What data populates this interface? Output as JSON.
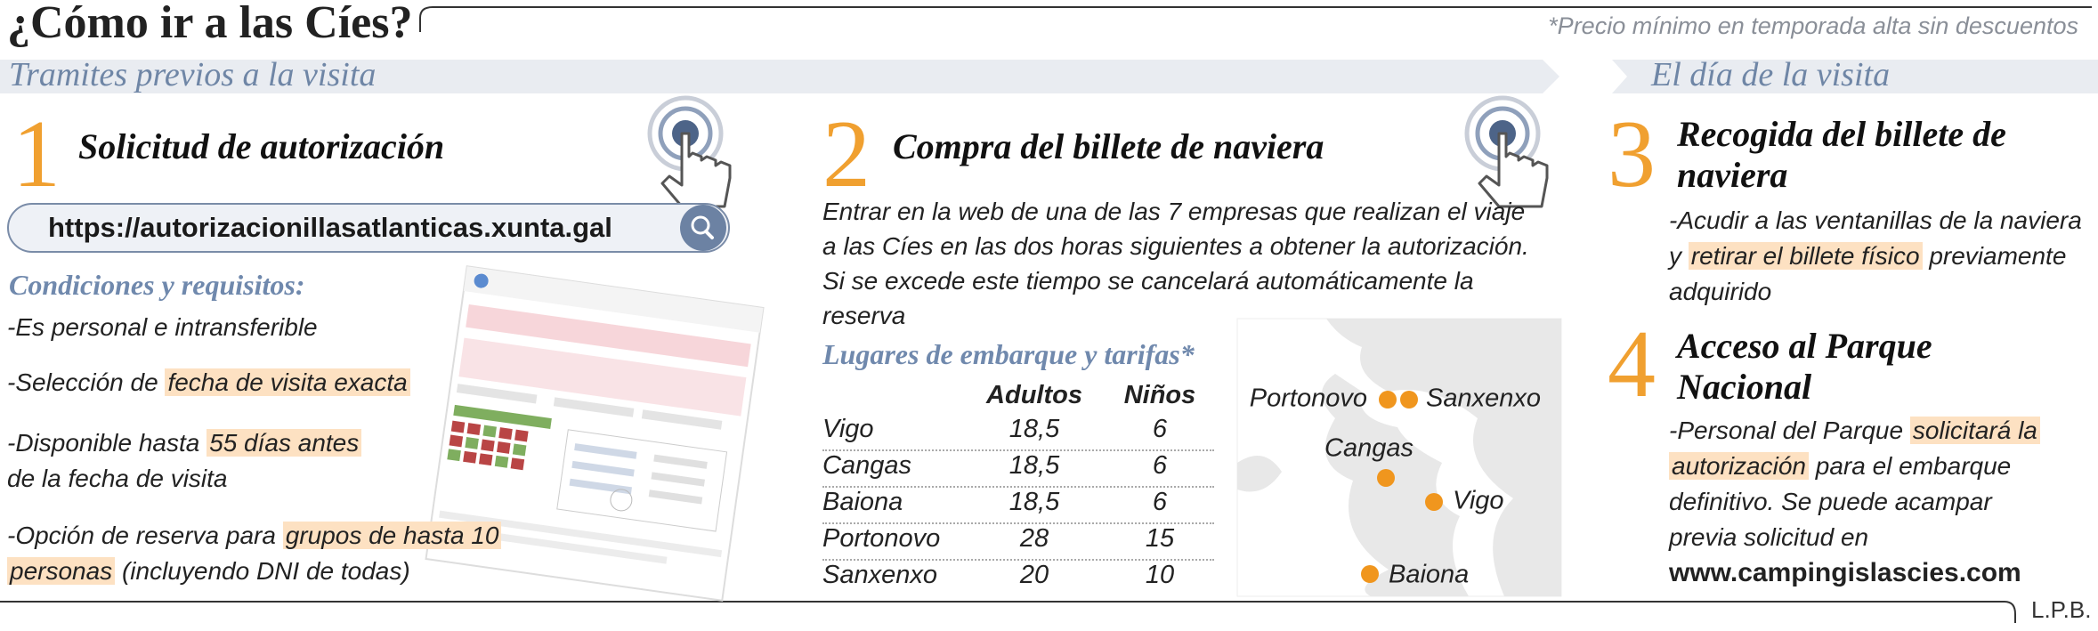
{
  "header": {
    "title": "¿Cómo ir a las Cíes?",
    "note": "*Precio mínimo en temporada alta sin descuentos"
  },
  "sections": [
    "Tramites previos a la visita",
    "El día de la visita"
  ],
  "steps": [
    {
      "number": 1,
      "title": "Solicitud de autorización",
      "url": "https://autorizacionillasatlanticas.xunta.gal",
      "subtitle": "Condiciones y requisitos:",
      "items": [
        {
          "pre": "-Es personal e intransferible"
        },
        {
          "pre": "-Selección de ",
          "mark": "fecha de visita exacta"
        },
        {
          "pre": "-Disponible hasta ",
          "mark": "55 días antes",
          "post": "de la fecha de visita"
        },
        {
          "pre": "-Opción de reserva para ",
          "mark": "grupos de hasta 10 personas",
          "post": " (incluyendo DNI de todas)"
        }
      ]
    },
    {
      "number": 2,
      "title": "Compra del billete de naviera",
      "text": "Entrar en la web de una de las 7 empresas que realizan el viaje a las Cíes en las dos horas siguientes a obtener la autorización. Si se excede este tiempo se cancelará automáticamente la reserva",
      "subtitle": "Lugares de embarque y tarifas*",
      "table": {
        "header": [
          "Adultos",
          "Niños"
        ],
        "rows": [
          [
            "Vigo",
            "18,5",
            6
          ],
          [
            "Cangas",
            "18,5",
            6
          ],
          [
            "Baiona",
            "18,5",
            6
          ],
          [
            "Portonovo",
            28,
            15
          ],
          [
            "Sanxenxo",
            20,
            10
          ]
        ]
      },
      "map": [
        "Portonovo",
        "Sanxenxo",
        "Cangas",
        "Vigo",
        "Baiona"
      ]
    },
    {
      "number": 3,
      "title": "Recogida del billete de naviera",
      "text": {
        "pre": "-Acudir a las ventanillas de la naviera y ",
        "mark": "retirar el billete físico",
        "post": " previamente adquirido"
      }
    },
    {
      "number": 4,
      "title": "Acceso al Parque Nacional",
      "text": {
        "pre": "-Personal del Parque ",
        "mark": "solicitará la autorización",
        "post": " para el embarque definitivo. Se puede acampar previa solicitud en",
        "link": "www.campingislascies.com"
      }
    }
  ],
  "footer": "L.P.B."
}
